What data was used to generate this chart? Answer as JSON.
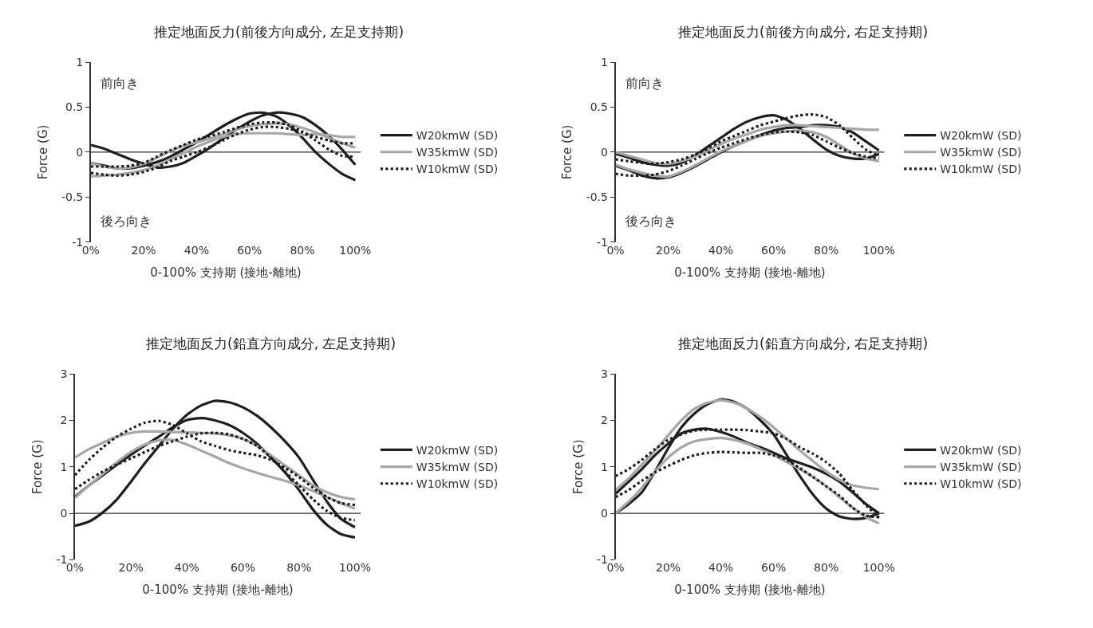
{
  "chart_data": [
    {
      "type": "line",
      "title": "推定地面反力(前後方向成分, 左足支持期)",
      "xlabel": "0-100% 支持期 (接地-離地)",
      "ylabel": "Force (G)",
      "annotations": [
        "前向き",
        "後ろ向き"
      ],
      "legend": "right",
      "ref_lines": [
        {
          "axis": "y",
          "value": 0,
          "color": "#333333"
        }
      ],
      "x": [
        0,
        5,
        10,
        15,
        20,
        25,
        30,
        35,
        40,
        45,
        50,
        55,
        60,
        65,
        70,
        75,
        80,
        85,
        90,
        95,
        100
      ],
      "xlim": [
        0,
        102
      ],
      "xticks": [
        {
          "value": 0,
          "label": "0%"
        },
        {
          "value": 20,
          "label": "20%"
        },
        {
          "value": 40,
          "label": "40%"
        },
        {
          "value": 60,
          "label": "60%"
        },
        {
          "value": 80,
          "label": "80%"
        },
        {
          "value": 100,
          "label": "100%"
        }
      ],
      "ylim": [
        -1,
        1
      ],
      "yticks": [
        -1,
        -0.5,
        0,
        0.5,
        1
      ],
      "series": [
        {
          "name": "W20kmW (SD)",
          "color": "#1e1e1e",
          "line_style": "solid",
          "values": [
            -0.12,
            -0.15,
            -0.18,
            -0.18,
            -0.15,
            -0.11,
            -0.05,
            0.03,
            0.11,
            0.2,
            0.29,
            0.37,
            0.43,
            0.44,
            0.4,
            0.3,
            0.16,
            0.0,
            -0.13,
            -0.24,
            -0.31
          ]
        },
        {
          "color": "#1e1e1e",
          "line_style": "solid",
          "values": [
            0.08,
            0.04,
            -0.02,
            -0.08,
            -0.13,
            -0.17,
            -0.16,
            -0.12,
            -0.04,
            0.05,
            0.15,
            0.25,
            0.34,
            0.41,
            0.44,
            0.43,
            0.39,
            0.3,
            0.18,
            0.03,
            -0.14
          ]
        },
        {
          "name": "W35kmW (SD)",
          "color": "#a6a6a6",
          "line_style": "solid",
          "values": [
            -0.27,
            -0.26,
            -0.25,
            -0.23,
            -0.2,
            -0.15,
            -0.08,
            -0.01,
            0.06,
            0.12,
            0.17,
            0.2,
            0.21,
            0.21,
            0.21,
            0.2,
            0.19,
            0.2,
            0.19,
            0.17,
            0.17
          ]
        },
        {
          "color": "#a6a6a6",
          "line_style": "solid",
          "values": [
            -0.12,
            -0.16,
            -0.18,
            -0.17,
            -0.13,
            -0.06,
            0.01,
            0.07,
            0.11,
            0.15,
            0.2,
            0.25,
            0.29,
            0.31,
            0.32,
            0.31,
            0.27,
            0.22,
            0.16,
            0.1,
            0.05
          ]
        },
        {
          "name": "W10kmW (SD)",
          "color": "#1e1e1e",
          "line_style": "dotted",
          "values": [
            -0.23,
            -0.25,
            -0.26,
            -0.25,
            -0.22,
            -0.17,
            -0.1,
            -0.05,
            0.0,
            0.06,
            0.13,
            0.2,
            0.25,
            0.28,
            0.28,
            0.26,
            0.22,
            0.17,
            0.13,
            0.1,
            0.1
          ]
        },
        {
          "color": "#1e1e1e",
          "line_style": "dotted",
          "values": [
            -0.16,
            -0.16,
            -0.16,
            -0.15,
            -0.12,
            -0.05,
            0.02,
            0.08,
            0.14,
            0.18,
            0.22,
            0.27,
            0.31,
            0.33,
            0.33,
            0.3,
            0.23,
            0.13,
            0.03,
            -0.04,
            -0.05
          ]
        }
      ]
    },
    {
      "type": "line",
      "title": "推定地面反力(前後方向成分, 右足支持期)",
      "xlabel": "0-100% 支持期 (接地-離地)",
      "ylabel": "Force (G)",
      "annotations": [
        "前向き",
        "後ろ向き"
      ],
      "legend": "right",
      "ref_lines": [
        {
          "axis": "y",
          "value": 0,
          "color": "#333333"
        }
      ],
      "x": [
        0,
        5,
        10,
        15,
        20,
        25,
        30,
        35,
        40,
        45,
        50,
        55,
        60,
        65,
        70,
        75,
        80,
        85,
        90,
        95,
        100
      ],
      "xlim": [
        0,
        102
      ],
      "xticks": [
        {
          "value": 0,
          "label": "0%"
        },
        {
          "value": 20,
          "label": "20%"
        },
        {
          "value": 40,
          "label": "40%"
        },
        {
          "value": 60,
          "label": "60%"
        },
        {
          "value": 80,
          "label": "80%"
        },
        {
          "value": 100,
          "label": "100%"
        }
      ],
      "ylim": [
        -1,
        1
      ],
      "yticks": [
        -1,
        -0.5,
        0,
        0.5,
        1
      ],
      "series": [
        {
          "name": "W20kmW (SD)",
          "color": "#1e1e1e",
          "line_style": "solid",
          "values": [
            -0.02,
            -0.06,
            -0.11,
            -0.14,
            -0.15,
            -0.12,
            -0.04,
            0.06,
            0.16,
            0.26,
            0.34,
            0.39,
            0.41,
            0.36,
            0.26,
            0.14,
            0.03,
            -0.04,
            -0.07,
            -0.07,
            -0.02
          ]
        },
        {
          "color": "#1e1e1e",
          "line_style": "solid",
          "values": [
            -0.15,
            -0.2,
            -0.26,
            -0.29,
            -0.28,
            -0.23,
            -0.16,
            -0.08,
            0.0,
            0.07,
            0.13,
            0.19,
            0.24,
            0.27,
            0.28,
            0.3,
            0.3,
            0.28,
            0.22,
            0.12,
            0.02
          ]
        },
        {
          "name": "W35kmW (SD)",
          "color": "#a6a6a6",
          "line_style": "solid",
          "values": [
            0.0,
            -0.04,
            -0.08,
            -0.12,
            -0.13,
            -0.1,
            -0.05,
            0.02,
            0.09,
            0.15,
            0.2,
            0.25,
            0.28,
            0.3,
            0.3,
            0.29,
            0.28,
            0.27,
            0.26,
            0.25,
            0.25
          ]
        },
        {
          "color": "#a6a6a6",
          "line_style": "solid",
          "values": [
            -0.14,
            -0.19,
            -0.23,
            -0.26,
            -0.27,
            -0.22,
            -0.15,
            -0.07,
            0.01,
            0.07,
            0.13,
            0.18,
            0.21,
            0.23,
            0.24,
            0.22,
            0.17,
            0.08,
            -0.01,
            -0.07,
            -0.1
          ]
        },
        {
          "name": "W10kmW (SD)",
          "color": "#1e1e1e",
          "line_style": "dotted",
          "values": [
            -0.08,
            -0.1,
            -0.12,
            -0.13,
            -0.11,
            -0.08,
            -0.03,
            0.04,
            0.12,
            0.18,
            0.24,
            0.3,
            0.34,
            0.38,
            0.41,
            0.42,
            0.39,
            0.3,
            0.16,
            0.03,
            -0.04
          ]
        },
        {
          "color": "#1e1e1e",
          "line_style": "dotted",
          "values": [
            -0.24,
            -0.26,
            -0.26,
            -0.25,
            -0.21,
            -0.15,
            -0.08,
            -0.01,
            0.05,
            0.1,
            0.15,
            0.19,
            0.22,
            0.23,
            0.22,
            0.19,
            0.12,
            0.05,
            -0.01,
            -0.05,
            -0.07
          ]
        }
      ]
    },
    {
      "type": "line",
      "title": "推定地面反力(鉛直方向成分, 左足支持期)",
      "xlabel": "0-100% 支持期 (接地-離地)",
      "ylabel": "Force (G)",
      "legend": "right",
      "ref_lines": [
        {
          "axis": "y",
          "value": 0,
          "color": "#333333"
        }
      ],
      "x": [
        0,
        5,
        10,
        15,
        20,
        25,
        30,
        35,
        40,
        45,
        50,
        55,
        60,
        65,
        70,
        75,
        80,
        85,
        90,
        95,
        100
      ],
      "xlim": [
        0,
        102
      ],
      "xticks": [
        {
          "value": 0,
          "label": "0%"
        },
        {
          "value": 20,
          "label": "20%"
        },
        {
          "value": 40,
          "label": "40%"
        },
        {
          "value": 60,
          "label": "60%"
        },
        {
          "value": 80,
          "label": "80%"
        },
        {
          "value": 100,
          "label": "100%"
        }
      ],
      "ylim": [
        -1,
        3
      ],
      "yticks": [
        -1,
        0,
        1,
        2,
        3
      ],
      "series": [
        {
          "name": "W20kmW (SD)",
          "color": "#1e1e1e",
          "line_style": "solid",
          "values": [
            -0.27,
            -0.18,
            0.02,
            0.3,
            0.68,
            1.08,
            1.45,
            1.82,
            2.12,
            2.32,
            2.42,
            2.39,
            2.28,
            2.1,
            1.85,
            1.55,
            1.2,
            0.72,
            0.25,
            -0.12,
            -0.3
          ]
        },
        {
          "color": "#1e1e1e",
          "line_style": "solid",
          "values": [
            0.35,
            0.6,
            0.82,
            1.05,
            1.26,
            1.46,
            1.65,
            1.85,
            2.01,
            2.05,
            2.0,
            1.9,
            1.73,
            1.5,
            1.2,
            0.88,
            0.5,
            0.08,
            -0.25,
            -0.45,
            -0.52
          ]
        },
        {
          "name": "W35kmW (SD)",
          "color": "#a6a6a6",
          "line_style": "solid",
          "values": [
            1.2,
            1.38,
            1.52,
            1.65,
            1.73,
            1.76,
            1.76,
            1.75,
            1.74,
            1.73,
            1.72,
            1.68,
            1.6,
            1.45,
            1.25,
            1.03,
            0.82,
            0.6,
            0.45,
            0.35,
            0.3
          ]
        },
        {
          "color": "#a6a6a6",
          "line_style": "solid",
          "values": [
            0.33,
            0.6,
            0.85,
            1.1,
            1.32,
            1.48,
            1.57,
            1.58,
            1.48,
            1.35,
            1.22,
            1.08,
            0.97,
            0.87,
            0.78,
            0.7,
            0.6,
            0.48,
            0.35,
            0.22,
            0.1
          ]
        },
        {
          "name": "W10kmW (SD)",
          "color": "#1e1e1e",
          "line_style": "dotted",
          "values": [
            0.82,
            1.15,
            1.42,
            1.65,
            1.82,
            1.95,
            1.99,
            1.9,
            1.72,
            1.55,
            1.45,
            1.36,
            1.3,
            1.25,
            1.15,
            0.98,
            0.78,
            0.55,
            0.35,
            0.22,
            0.18
          ]
        },
        {
          "color": "#1e1e1e",
          "line_style": "dotted",
          "values": [
            0.52,
            0.72,
            0.9,
            1.05,
            1.18,
            1.32,
            1.45,
            1.55,
            1.65,
            1.72,
            1.73,
            1.7,
            1.6,
            1.45,
            1.2,
            0.9,
            0.6,
            0.3,
            0.05,
            -0.1,
            -0.15
          ]
        }
      ]
    },
    {
      "type": "line",
      "title": "推定地面反力(鉛直方向成分, 右足支持期)",
      "xlabel": "0-100% 支持期 (接地-離地)",
      "ylabel": "Force (G)",
      "legend": "right",
      "ref_lines": [
        {
          "axis": "y",
          "value": 0,
          "color": "#333333"
        }
      ],
      "x": [
        0,
        5,
        10,
        15,
        20,
        25,
        30,
        35,
        40,
        45,
        50,
        55,
        60,
        65,
        70,
        75,
        80,
        85,
        90,
        95,
        100
      ],
      "xlim": [
        0,
        102
      ],
      "xticks": [
        {
          "value": 0,
          "label": "0%"
        },
        {
          "value": 20,
          "label": "20%"
        },
        {
          "value": 40,
          "label": "40%"
        },
        {
          "value": 60,
          "label": "60%"
        },
        {
          "value": 80,
          "label": "80%"
        },
        {
          "value": 100,
          "label": "100%"
        }
      ],
      "ylim": [
        -1,
        3
      ],
      "yticks": [
        -1,
        0,
        1,
        2,
        3
      ],
      "series": [
        {
          "name": "W20kmW (SD)",
          "color": "#1e1e1e",
          "line_style": "solid",
          "values": [
            0.0,
            0.2,
            0.45,
            0.9,
            1.4,
            1.85,
            2.15,
            2.35,
            2.45,
            2.4,
            2.25,
            2.0,
            1.7,
            1.25,
            0.8,
            0.4,
            0.1,
            -0.07,
            -0.12,
            -0.1,
            0.0
          ]
        },
        {
          "color": "#1e1e1e",
          "line_style": "solid",
          "values": [
            0.42,
            0.68,
            0.95,
            1.25,
            1.5,
            1.72,
            1.8,
            1.82,
            1.75,
            1.65,
            1.52,
            1.42,
            1.3,
            1.18,
            1.08,
            0.98,
            0.85,
            0.68,
            0.45,
            0.2,
            0.0
          ]
        },
        {
          "name": "W35kmW (SD)",
          "color": "#a6a6a6",
          "line_style": "solid",
          "values": [
            0.5,
            0.75,
            1.05,
            1.35,
            1.68,
            2.0,
            2.25,
            2.38,
            2.43,
            2.38,
            2.25,
            2.07,
            1.85,
            1.6,
            1.35,
            1.12,
            0.9,
            0.72,
            0.6,
            0.55,
            0.52
          ]
        },
        {
          "color": "#a6a6a6",
          "line_style": "solid",
          "values": [
            0.0,
            0.25,
            0.55,
            0.9,
            1.2,
            1.42,
            1.55,
            1.6,
            1.62,
            1.58,
            1.5,
            1.38,
            1.25,
            1.1,
            0.95,
            0.78,
            0.58,
            0.35,
            0.12,
            -0.08,
            -0.22
          ]
        },
        {
          "name": "W10kmW (SD)",
          "color": "#1e1e1e",
          "line_style": "dotted",
          "values": [
            0.8,
            0.95,
            1.15,
            1.38,
            1.58,
            1.7,
            1.78,
            1.8,
            1.8,
            1.8,
            1.79,
            1.76,
            1.72,
            1.6,
            1.42,
            1.28,
            1.1,
            0.85,
            0.5,
            0.18,
            -0.1
          ]
        },
        {
          "color": "#1e1e1e",
          "line_style": "dotted",
          "values": [
            0.35,
            0.5,
            0.7,
            0.88,
            1.02,
            1.15,
            1.25,
            1.3,
            1.32,
            1.31,
            1.3,
            1.3,
            1.25,
            1.15,
            0.97,
            0.78,
            0.58,
            0.38,
            0.12,
            -0.05,
            -0.08
          ]
        }
      ]
    }
  ]
}
